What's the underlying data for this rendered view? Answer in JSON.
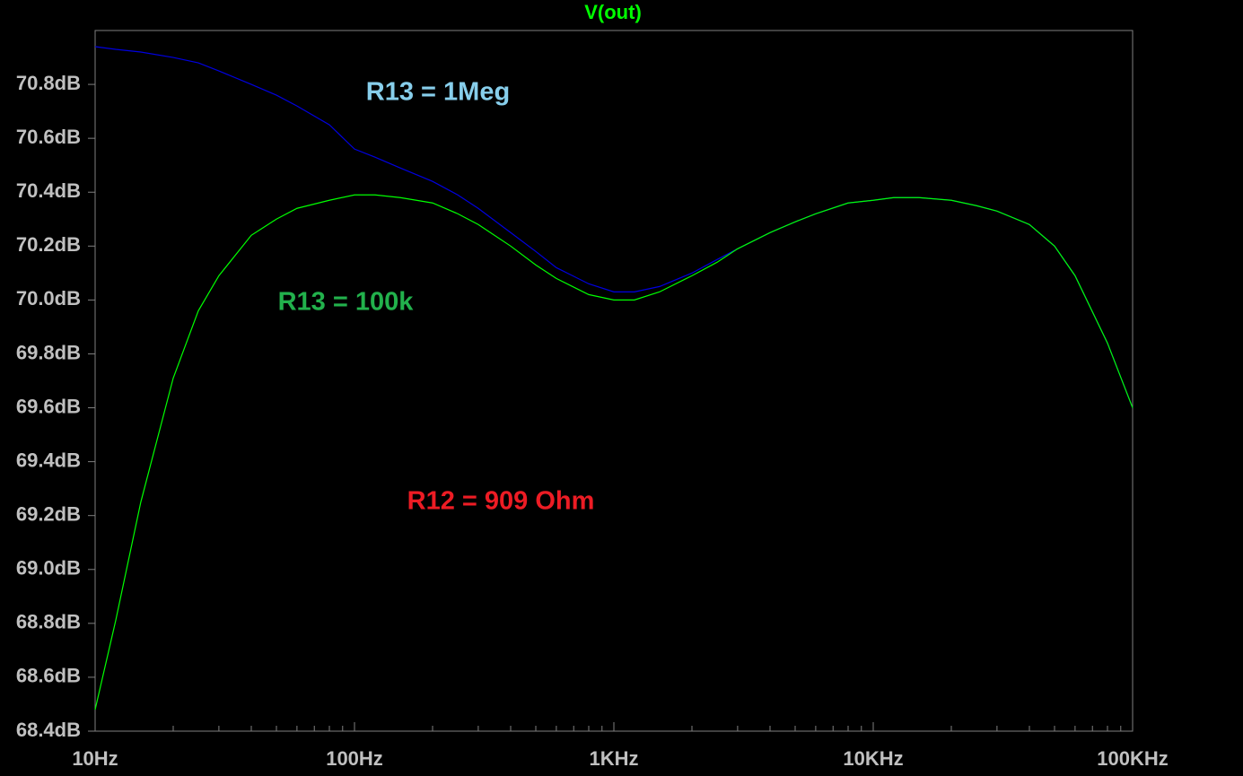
{
  "chart_data": {
    "type": "line",
    "title": "V(out)",
    "title_color": "#00ff00",
    "xscale": "log",
    "xlim": [
      10,
      100000
    ],
    "xticks": [
      {
        "value": 10,
        "label": "10Hz"
      },
      {
        "value": 100,
        "label": "100Hz"
      },
      {
        "value": 1000,
        "label": "1KHz"
      },
      {
        "value": 10000,
        "label": "10KHz"
      },
      {
        "value": 100000,
        "label": "100KHz"
      }
    ],
    "xminor_ticks": [
      20,
      30,
      40,
      50,
      60,
      70,
      80,
      90,
      200,
      300,
      400,
      500,
      600,
      700,
      800,
      900,
      2000,
      3000,
      4000,
      5000,
      6000,
      7000,
      8000,
      9000,
      20000,
      30000,
      40000,
      50000,
      60000,
      70000,
      80000,
      90000
    ],
    "ylim": [
      68.4,
      71.0
    ],
    "yticks": [
      {
        "value": 68.4,
        "label": "68.4dB"
      },
      {
        "value": 68.6,
        "label": "68.6dB"
      },
      {
        "value": 68.8,
        "label": "68.8dB"
      },
      {
        "value": 69.0,
        "label": "69.0dB"
      },
      {
        "value": 69.2,
        "label": "69.2dB"
      },
      {
        "value": 69.4,
        "label": "69.4dB"
      },
      {
        "value": 69.6,
        "label": "69.6dB"
      },
      {
        "value": 69.8,
        "label": "69.8dB"
      },
      {
        "value": 70.0,
        "label": "70.0dB"
      },
      {
        "value": 70.2,
        "label": "70.2dB"
      },
      {
        "value": 70.4,
        "label": "70.4dB"
      },
      {
        "value": 70.6,
        "label": "70.6dB"
      },
      {
        "value": 70.8,
        "label": "70.8dB"
      }
    ],
    "grid": false,
    "x": [
      10,
      12,
      15,
      20,
      25,
      30,
      40,
      50,
      60,
      80,
      100,
      120,
      150,
      200,
      250,
      300,
      400,
      500,
      600,
      800,
      1000,
      1200,
      1500,
      2000,
      2500,
      3000,
      4000,
      5000,
      6000,
      8000,
      10000,
      12000,
      15000,
      20000,
      25000,
      30000,
      40000,
      50000,
      60000,
      80000,
      100000
    ],
    "series": [
      {
        "name": "R13 = 1Meg",
        "color": "#0000e0",
        "label_color": "#87ceeb",
        "values": [
          70.94,
          70.93,
          70.92,
          70.9,
          70.88,
          70.85,
          70.8,
          70.76,
          70.72,
          70.65,
          70.56,
          70.53,
          70.49,
          70.44,
          70.39,
          70.34,
          70.25,
          70.18,
          70.12,
          70.06,
          70.03,
          70.03,
          70.05,
          70.1,
          70.15,
          70.19,
          70.25,
          70.29,
          70.32,
          70.36,
          70.37,
          70.38,
          70.38,
          70.37,
          70.35,
          70.33,
          70.28,
          70.2,
          70.09,
          69.84,
          69.6
        ]
      },
      {
        "name": "R13 = 100k",
        "color": "#00ff00",
        "label_color": "#22b14c",
        "values": [
          68.48,
          68.81,
          69.25,
          69.71,
          69.96,
          70.09,
          70.24,
          70.3,
          70.34,
          70.37,
          70.39,
          70.39,
          70.38,
          70.36,
          70.32,
          70.28,
          70.2,
          70.13,
          70.08,
          70.02,
          70.0,
          70.0,
          70.03,
          70.09,
          70.14,
          70.19,
          70.25,
          70.29,
          70.32,
          70.36,
          70.37,
          70.38,
          70.38,
          70.37,
          70.35,
          70.33,
          70.28,
          70.2,
          70.09,
          69.84,
          69.6
        ]
      }
    ],
    "annotations": [
      {
        "text": "R12 = 909 Ohm",
        "color": "#ed1c24"
      }
    ]
  }
}
